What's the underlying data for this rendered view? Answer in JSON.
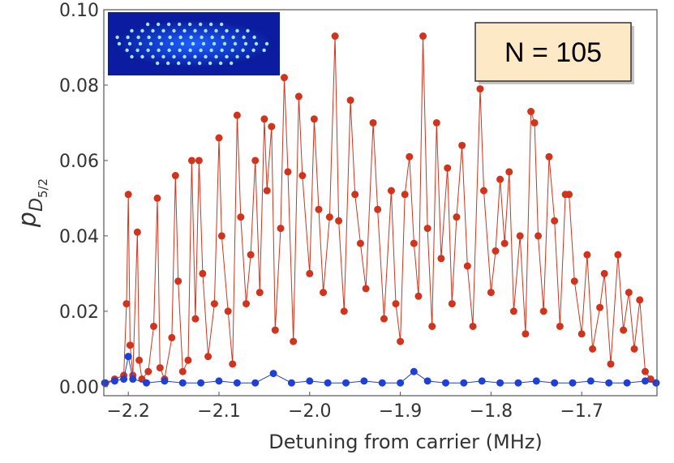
{
  "chart_data": {
    "type": "scatter-line",
    "ylabel": {
      "symbol": "p",
      "subscript": "D",
      "subsubscript": "5/2"
    },
    "xlabel": "Detuning from carrier (MHz)",
    "annotation": "N = 105",
    "xlim": [
      -2.227,
      -1.617
    ],
    "ylim": [
      -0.0024,
      0.1
    ],
    "xticks": [
      {
        "value": -2.2,
        "label": "−2.2"
      },
      {
        "value": -2.1,
        "label": "−2.1"
      },
      {
        "value": -2.0,
        "label": "−2.0"
      },
      {
        "value": -1.9,
        "label": "−1.9"
      },
      {
        "value": -1.8,
        "label": "−1.8"
      },
      {
        "value": -1.7,
        "label": "−1.7"
      }
    ],
    "yticks": [
      {
        "value": 0,
        "label": "0.00"
      },
      {
        "value": 0.02,
        "label": "0.02"
      },
      {
        "value": 0.04,
        "label": "0.04"
      },
      {
        "value": 0.06,
        "label": "0.06"
      },
      {
        "value": 0.08,
        "label": "0.08"
      },
      {
        "value": 0.1,
        "label": "0.10"
      }
    ],
    "series": [
      {
        "color": "#d0341c",
        "x": [
          -2.225,
          -2.215,
          -2.205,
          -2.202,
          -2.2,
          -2.198,
          -2.195,
          -2.19,
          -2.188,
          -2.185,
          -2.178,
          -2.172,
          -2.168,
          -2.165,
          -2.16,
          -2.152,
          -2.148,
          -2.145,
          -2.14,
          -2.134,
          -2.13,
          -2.126,
          -2.122,
          -2.118,
          -2.112,
          -2.105,
          -2.1,
          -2.097,
          -2.09,
          -2.085,
          -2.08,
          -2.076,
          -2.07,
          -2.065,
          -2.06,
          -2.055,
          -2.05,
          -2.047,
          -2.042,
          -2.038,
          -2.032,
          -2.028,
          -2.024,
          -2.018,
          -2.012,
          -2.008,
          -2.0,
          -1.995,
          -1.99,
          -1.985,
          -1.978,
          -1.972,
          -1.968,
          -1.962,
          -1.955,
          -1.95,
          -1.944,
          -1.938,
          -1.93,
          -1.925,
          -1.918,
          -1.91,
          -1.905,
          -1.9,
          -1.895,
          -1.89,
          -1.885,
          -1.88,
          -1.875,
          -1.87,
          -1.865,
          -1.86,
          -1.855,
          -1.848,
          -1.843,
          -1.838,
          -1.832,
          -1.826,
          -1.82,
          -1.812,
          -1.808,
          -1.8,
          -1.795,
          -1.79,
          -1.785,
          -1.78,
          -1.775,
          -1.768,
          -1.762,
          -1.756,
          -1.752,
          -1.748,
          -1.742,
          -1.736,
          -1.73,
          -1.724,
          -1.718,
          -1.714,
          -1.708,
          -1.7,
          -1.694,
          -1.688,
          -1.68,
          -1.675,
          -1.668,
          -1.66,
          -1.654,
          -1.648,
          -1.642,
          -1.636,
          -1.63,
          -1.624,
          -1.618
        ],
        "values": [
          0.001,
          0.002,
          0.003,
          0.022,
          0.051,
          0.011,
          0.003,
          0.041,
          0.007,
          0.002,
          0.004,
          0.016,
          0.05,
          0.005,
          0.002,
          0.013,
          0.056,
          0.028,
          0.004,
          0.007,
          0.06,
          0.018,
          0.06,
          0.03,
          0.008,
          0.022,
          0.066,
          0.04,
          0.02,
          0.006,
          0.072,
          0.045,
          0.022,
          0.035,
          0.06,
          0.025,
          0.071,
          0.052,
          0.069,
          0.015,
          0.042,
          0.082,
          0.057,
          0.012,
          0.077,
          0.056,
          0.03,
          0.071,
          0.047,
          0.025,
          0.045,
          0.093,
          0.044,
          0.02,
          0.076,
          0.051,
          0.038,
          0.026,
          0.07,
          0.047,
          0.018,
          0.052,
          0.022,
          0.012,
          0.051,
          0.061,
          0.038,
          0.024,
          0.093,
          0.042,
          0.016,
          0.07,
          0.034,
          0.058,
          0.022,
          0.045,
          0.064,
          0.032,
          0.016,
          0.079,
          0.052,
          0.025,
          0.036,
          0.055,
          0.038,
          0.057,
          0.02,
          0.04,
          0.014,
          0.073,
          0.07,
          0.04,
          0.02,
          0.061,
          0.044,
          0.016,
          0.051,
          0.051,
          0.028,
          0.014,
          0.035,
          0.01,
          0.021,
          0.03,
          0.006,
          0.035,
          0.015,
          0.025,
          0.01,
          0.023,
          0.004,
          0.002,
          0.001
        ]
      },
      {
        "color": "#1f3fd6",
        "x": [
          -2.226,
          -2.215,
          -2.205,
          -2.2,
          -2.195,
          -2.18,
          -2.16,
          -2.14,
          -2.12,
          -2.1,
          -2.08,
          -2.06,
          -2.04,
          -2.02,
          -2.0,
          -1.98,
          -1.96,
          -1.94,
          -1.92,
          -1.9,
          -1.885,
          -1.87,
          -1.85,
          -1.83,
          -1.81,
          -1.79,
          -1.77,
          -1.75,
          -1.73,
          -1.71,
          -1.69,
          -1.67,
          -1.65,
          -1.63,
          -1.618
        ],
        "values": [
          0.001,
          0.0015,
          0.002,
          0.008,
          0.002,
          0.001,
          0.0015,
          0.001,
          0.001,
          0.0015,
          0.001,
          0.001,
          0.0035,
          0.001,
          0.0015,
          0.001,
          0.001,
          0.0015,
          0.001,
          0.001,
          0.004,
          0.0015,
          0.001,
          0.001,
          0.0015,
          0.001,
          0.001,
          0.0015,
          0.001,
          0.001,
          0.0015,
          0.001,
          0.001,
          0.0015,
          0.001
        ]
      }
    ]
  }
}
